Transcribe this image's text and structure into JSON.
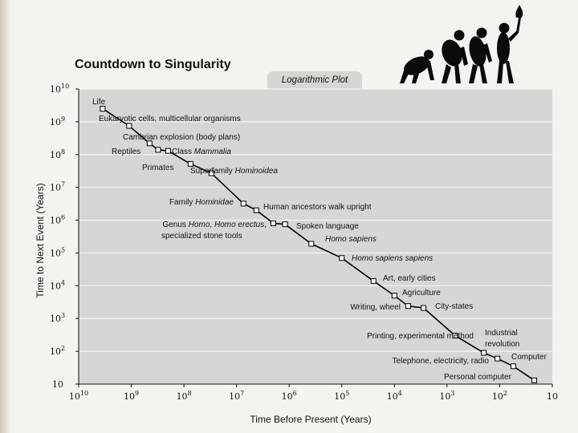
{
  "chart_data": {
    "type": "scatter",
    "title": "Countdown to Singularity",
    "subtitle": "Logarithmic Plot",
    "xlabel": "Time Before Present (Years)",
    "ylabel": "Time to Next Event (Years)",
    "x_scale": "log",
    "y_scale": "log",
    "xlim": [
      10000000000,
      10
    ],
    "ylim": [
      10,
      10000000000
    ],
    "x_ticks": [
      {
        "base": "10",
        "exp": "10",
        "value": 10000000000
      },
      {
        "base": "10",
        "exp": "9",
        "value": 1000000000
      },
      {
        "base": "10",
        "exp": "8",
        "value": 100000000
      },
      {
        "base": "10",
        "exp": "7",
        "value": 10000000
      },
      {
        "base": "10",
        "exp": "6",
        "value": 1000000
      },
      {
        "base": "10",
        "exp": "5",
        "value": 100000
      },
      {
        "base": "10",
        "exp": "4",
        "value": 10000
      },
      {
        "base": "10",
        "exp": "3",
        "value": 1000
      },
      {
        "base": "10",
        "exp": "2",
        "value": 100
      },
      {
        "base": "10",
        "exp": "",
        "value": 10
      }
    ],
    "y_ticks": [
      {
        "base": "10",
        "exp": "10",
        "value": 10000000000
      },
      {
        "base": "10",
        "exp": "9",
        "value": 1000000000
      },
      {
        "base": "10",
        "exp": "8",
        "value": 100000000
      },
      {
        "base": "10",
        "exp": "7",
        "value": 10000000
      },
      {
        "base": "10",
        "exp": "6",
        "value": 1000000
      },
      {
        "base": "10",
        "exp": "5",
        "value": 100000
      },
      {
        "base": "10",
        "exp": "4",
        "value": 10000
      },
      {
        "base": "10",
        "exp": "3",
        "value": 1000
      },
      {
        "base": "10",
        "exp": "2",
        "value": 100
      },
      {
        "base": "10",
        "exp": "",
        "value": 10
      }
    ],
    "grid": true,
    "series": [
      {
        "name": "Events",
        "points": [
          {
            "label": "Life",
            "x": 3500000000,
            "y": 2500000000
          },
          {
            "label": "Eukaryotic cells, multicellular organisms",
            "x": 1100000000,
            "y": 750000000
          },
          {
            "label": "Cambrian explosion (body plans)",
            "x": 450000000,
            "y": 220000000
          },
          {
            "label": "Reptiles",
            "x": 310000000,
            "y": 140000000
          },
          {
            "label": "Class Mammalia",
            "x": 200000000,
            "y": 130000000
          },
          {
            "label": "Primates",
            "x": 75000000,
            "y": 52000000
          },
          {
            "label": "Superfamily Hominoidea",
            "x": 30000000,
            "y": 27000000
          },
          {
            "label": "Family Hominidae",
            "x": 7400000,
            "y": 3200000
          },
          {
            "label": "Human ancestors walk upright",
            "x": 4200000,
            "y": 2000000
          },
          {
            "label": "Genus Homo, Homo erectus, specialized stone tools",
            "x": 2000000,
            "y": 800000
          },
          {
            "label": "Spoken language",
            "x": 1200000,
            "y": 750000
          },
          {
            "label": "Homo sapiens",
            "x": 380000,
            "y": 190000
          },
          {
            "label": "Homo sapiens sapiens",
            "x": 100000,
            "y": 70000
          },
          {
            "label": "Art, early cities",
            "x": 25000,
            "y": 14000
          },
          {
            "label": "Agriculture",
            "x": 10000,
            "y": 5000
          },
          {
            "label": "Writing, wheel",
            "x": 5500,
            "y": 2400
          },
          {
            "label": "City-states",
            "x": 2800,
            "y": 2100
          },
          {
            "label": "Printing, experimental method",
            "x": 700,
            "y": 300
          },
          {
            "label": "Industrial revolution",
            "x": 200,
            "y": 90
          },
          {
            "label": "Telephone, electricity, radio",
            "x": 110,
            "y": 60
          },
          {
            "label": "Computer",
            "x": 55,
            "y": 35
          },
          {
            "label": "Personal computer",
            "x": 22,
            "y": 13
          }
        ]
      }
    ],
    "annotations": [
      {
        "text": "Life",
        "parts": [
          {
            "t": "Life"
          }
        ]
      },
      {
        "text": "Eukaryotic cells, multicellular organisms",
        "parts": [
          {
            "t": "Eukaryotic cells, multicellular organisms"
          }
        ]
      },
      {
        "text": "Cambrian explosion (body plans)",
        "parts": [
          {
            "t": "Cambrian explosion (body plans)"
          }
        ]
      },
      {
        "text": "Reptiles",
        "parts": [
          {
            "t": "Reptiles"
          }
        ]
      },
      {
        "text": "Class Mammalia",
        "parts": [
          {
            "t": "Class "
          },
          {
            "t": "Mammalia",
            "i": true
          }
        ]
      },
      {
        "text": "Primates",
        "parts": [
          {
            "t": "Primates"
          }
        ]
      },
      {
        "text": "Superfamily Hominoidea",
        "parts": [
          {
            "t": "Superfamily "
          },
          {
            "t": "Hominoidea",
            "i": true
          }
        ]
      },
      {
        "text": "Family Hominidae",
        "parts": [
          {
            "t": "Family "
          },
          {
            "t": "Hominidae",
            "i": true
          }
        ]
      },
      {
        "text": "Human ancestors walk upright",
        "parts": [
          {
            "t": "Human ancestors walk upright"
          }
        ]
      },
      {
        "text": "Genus Homo, Homo erectus,",
        "parts": [
          {
            "t": "Genus "
          },
          {
            "t": "Homo",
            "i": true
          },
          {
            "t": ", "
          },
          {
            "t": "Homo erectus",
            "i": true
          },
          {
            "t": ","
          }
        ]
      },
      {
        "text": "specialized stone tools",
        "parts": [
          {
            "t": "specialized stone tools"
          }
        ]
      },
      {
        "text": "Spoken language",
        "parts": [
          {
            "t": "Spoken language"
          }
        ]
      },
      {
        "text": "Homo sapiens",
        "parts": [
          {
            "t": "Homo sapiens",
            "i": true
          }
        ]
      },
      {
        "text": "Homo sapiens sapiens",
        "parts": [
          {
            "t": "Homo sapiens sapiens",
            "i": true
          }
        ]
      },
      {
        "text": "Art, early cities",
        "parts": [
          {
            "t": "Art, early cities"
          }
        ]
      },
      {
        "text": "Agriculture",
        "parts": [
          {
            "t": "Agriculture"
          }
        ]
      },
      {
        "text": "Writing, wheel",
        "parts": [
          {
            "t": "Writing, wheel"
          }
        ]
      },
      {
        "text": "City-states",
        "parts": [
          {
            "t": "City-states"
          }
        ]
      },
      {
        "text": "Printing, experimental method",
        "parts": [
          {
            "t": "Printing, experimental method"
          }
        ]
      },
      {
        "text": "Industrial",
        "parts": [
          {
            "t": "Industrial"
          }
        ]
      },
      {
        "text": "revolution",
        "parts": [
          {
            "t": "revolution"
          }
        ]
      },
      {
        "text": "Telephone, electricity, radio",
        "parts": [
          {
            "t": "Telephone, electricity, radio"
          }
        ]
      },
      {
        "text": "Computer",
        "parts": [
          {
            "t": "Computer"
          }
        ]
      },
      {
        "text": "Personal computer",
        "parts": [
          {
            "t": "Personal computer"
          }
        ]
      }
    ],
    "decoration": "march-of-progress-silhouette-icon"
  },
  "colors": {
    "plot_bg": "#d6d6d4",
    "grid": "#f5f5f3",
    "line": "#000000",
    "marker_fill": "#ffffff"
  }
}
